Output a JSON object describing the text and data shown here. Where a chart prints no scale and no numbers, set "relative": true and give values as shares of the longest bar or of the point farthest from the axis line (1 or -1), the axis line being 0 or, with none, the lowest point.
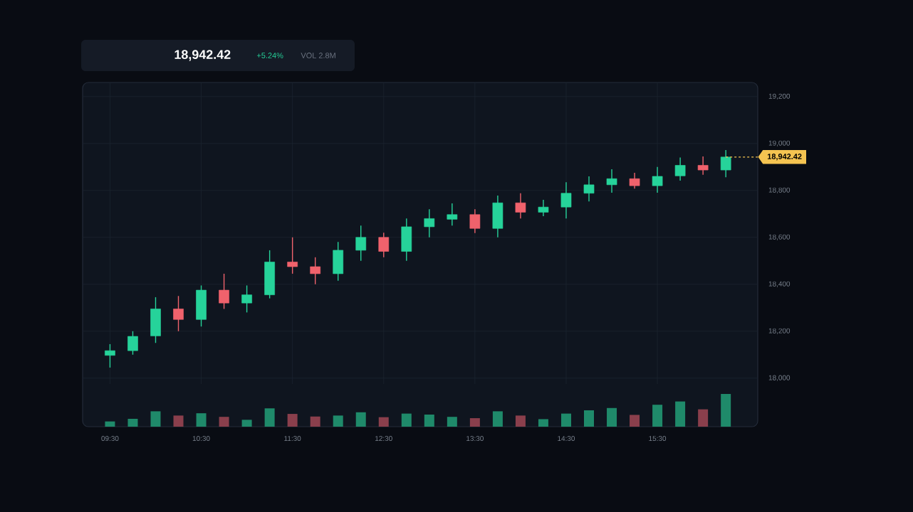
{
  "chart_data": [
    {
      "type": "candlestick",
      "annotations": [
        "18,942.42",
        "+5.24%",
        "VOL 2.8M"
      ],
      "x": [
        9.5,
        9.75,
        10,
        10.25,
        10.5,
        10.75,
        11,
        11.25,
        11.5,
        11.75,
        12,
        12.25,
        12.5,
        12.75,
        13,
        13.25,
        13.5,
        13.75,
        14,
        14.25,
        14.5,
        14.75,
        15,
        15.25,
        15.5,
        15.75,
        16,
        16.25
      ],
      "ohlc": [
        [
          18097,
          18145,
          18045,
          18117
        ],
        [
          18117,
          18200,
          18100,
          18178
        ],
        [
          18180,
          18345,
          18150,
          18295
        ],
        [
          18295,
          18350,
          18200,
          18250
        ],
        [
          18250,
          18395,
          18220,
          18375
        ],
        [
          18375,
          18445,
          18295,
          18320
        ],
        [
          18320,
          18395,
          18280,
          18355
        ],
        [
          18355,
          18545,
          18340,
          18495
        ],
        [
          18495,
          18600,
          18445,
          18475
        ],
        [
          18475,
          18515,
          18400,
          18445
        ],
        [
          18445,
          18580,
          18415,
          18545
        ],
        [
          18545,
          18650,
          18500,
          18600
        ],
        [
          18600,
          18620,
          18515,
          18540
        ],
        [
          18540,
          18680,
          18500,
          18645
        ],
        [
          18645,
          18720,
          18600,
          18680
        ],
        [
          18677,
          18745,
          18650,
          18697
        ],
        [
          18697,
          18720,
          18618,
          18638
        ],
        [
          18638,
          18778,
          18600,
          18747
        ],
        [
          18747,
          18788,
          18680,
          18707
        ],
        [
          18707,
          18760,
          18690,
          18729
        ],
        [
          18729,
          18835,
          18680,
          18788
        ],
        [
          18788,
          18860,
          18753,
          18824
        ],
        [
          18824,
          18890,
          18790,
          18850
        ],
        [
          18850,
          18875,
          18808,
          18820
        ],
        [
          18820,
          18900,
          18790,
          18860
        ],
        [
          18862,
          18940,
          18842,
          18907
        ],
        [
          18907,
          18945,
          18867,
          18887
        ],
        [
          18887,
          18972,
          18856,
          18942.42
        ]
      ],
      "colors": [
        "#26d39a",
        "#26d39a",
        "#26d39a",
        "#f0626c",
        "#26d39a",
        "#f0626c",
        "#26d39a",
        "#26d39a",
        "#f0626c",
        "#f0626c",
        "#26d39a",
        "#26d39a",
        "#f0626c",
        "#26d39a",
        "#26d39a",
        "#26d39a",
        "#f0626c",
        "#26d39a",
        "#f0626c",
        "#26d39a",
        "#26d39a",
        "#26d39a",
        "#26d39a",
        "#f0626c",
        "#26d39a",
        "#26d39a",
        "#f0626c",
        "#26d39a"
      ],
      "xlim": [
        9.2,
        16.6
      ],
      "xticks": [
        {
          "value": 9.5,
          "label": null
        },
        {
          "value": 10.5,
          "label": null
        },
        {
          "value": 11.5,
          "label": null
        },
        {
          "value": 12.5,
          "label": null
        },
        {
          "value": 13.5,
          "label": null
        },
        {
          "value": 14.5,
          "label": null
        },
        {
          "value": 15.5,
          "label": null
        }
      ],
      "ylim": [
        17975,
        19260
      ],
      "yticks": [
        {
          "value": 18000,
          "label": "18,000"
        },
        {
          "value": 18200,
          "label": "18,200"
        },
        {
          "value": 18400,
          "label": "18,400"
        },
        {
          "value": 18600,
          "label": "18,600"
        },
        {
          "value": 18800,
          "label": "18,800"
        },
        {
          "value": 19000,
          "label": "19,000"
        },
        {
          "value": 19200,
          "label": "19,200"
        }
      ],
      "grid": true,
      "tick_labels": "y",
      "ref_lines": [
        {
          "axis": "y",
          "value": 18942.42,
          "label": "18,942.42",
          "color": "#f5c451",
          "line_style": "dashed"
        }
      ]
    },
    {
      "type": "bar",
      "relative": true,
      "x": [
        9.5,
        9.75,
        10,
        10.25,
        10.5,
        10.75,
        11,
        11.25,
        11.5,
        11.75,
        12,
        12.25,
        12.5,
        12.75,
        13,
        13.25,
        13.5,
        13.75,
        14,
        14.25,
        14.5,
        14.75,
        15,
        15.25,
        15.5,
        15.75,
        16,
        16.25
      ],
      "values": [
        0.16,
        0.24,
        0.47,
        0.34,
        0.41,
        0.3,
        0.21,
        0.56,
        0.39,
        0.31,
        0.34,
        0.44,
        0.29,
        0.4,
        0.37,
        0.3,
        0.26,
        0.47,
        0.34,
        0.23,
        0.4,
        0.5,
        0.57,
        0.36,
        0.67,
        0.77,
        0.53,
        1
      ],
      "colors": [
        "#1f8a6a",
        "#1f8a6a",
        "#1f8a6a",
        "#8a3f4c",
        "#1f8a6a",
        "#8a3f4c",
        "#1f8a6a",
        "#1f8a6a",
        "#8a3f4c",
        "#8a3f4c",
        "#1f8a6a",
        "#1f8a6a",
        "#8a3f4c",
        "#1f8a6a",
        "#1f8a6a",
        "#1f8a6a",
        "#8a3f4c",
        "#1f8a6a",
        "#8a3f4c",
        "#1f8a6a",
        "#1f8a6a",
        "#1f8a6a",
        "#1f8a6a",
        "#8a3f4c",
        "#1f8a6a",
        "#1f8a6a",
        "#8a3f4c",
        "#1f8a6a"
      ],
      "xlim": [
        9.2,
        16.6
      ],
      "xticks": [
        {
          "value": 9.5,
          "label": "09:30"
        },
        {
          "value": 10.5,
          "label": "10:30"
        },
        {
          "value": 11.5,
          "label": "11:30"
        },
        {
          "value": 12.5,
          "label": "12:30"
        },
        {
          "value": 13.5,
          "label": "13:30"
        },
        {
          "value": 14.5,
          "label": "14:30"
        },
        {
          "value": 15.5,
          "label": "15:30"
        }
      ],
      "tick_labels": "x"
    }
  ]
}
